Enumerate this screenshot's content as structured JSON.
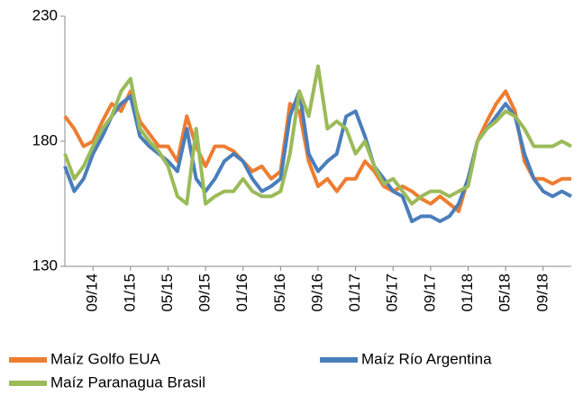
{
  "chart_data": {
    "type": "line",
    "categories": [
      null,
      null,
      null,
      "09/14",
      null,
      null,
      null,
      "01/15",
      null,
      null,
      null,
      "05/15",
      null,
      null,
      null,
      "09/15",
      null,
      null,
      null,
      "01/16",
      null,
      null,
      null,
      "05/16",
      null,
      null,
      null,
      "09/16",
      null,
      null,
      null,
      "01/17",
      null,
      null,
      null,
      "05/17",
      null,
      null,
      null,
      "09/17",
      null,
      null,
      null,
      "01/18",
      null,
      null,
      null,
      "05/18",
      null,
      null,
      null,
      "09/18",
      null,
      null,
      null
    ],
    "series": [
      {
        "name": "Maíz Golfo EUA",
        "color": "#ed7d31",
        "values": [
          190,
          185,
          178,
          180,
          188,
          195,
          192,
          200,
          188,
          183,
          178,
          178,
          172,
          190,
          178,
          170,
          178,
          178,
          176,
          172,
          168,
          170,
          165,
          168,
          195,
          192,
          172,
          162,
          165,
          160,
          165,
          165,
          172,
          168,
          162,
          160,
          162,
          160,
          157,
          155,
          158,
          155,
          152,
          165,
          180,
          188,
          195,
          200,
          192,
          172,
          165,
          165,
          163,
          165,
          165
        ]
      },
      {
        "name": "Maíz Río Argentina",
        "color": "#4a7ebb",
        "values": [
          170,
          160,
          165,
          175,
          182,
          190,
          195,
          198,
          182,
          178,
          175,
          172,
          168,
          185,
          165,
          160,
          165,
          172,
          175,
          172,
          165,
          160,
          162,
          165,
          190,
          200,
          175,
          168,
          172,
          175,
          190,
          192,
          182,
          170,
          165,
          160,
          158,
          148,
          150,
          150,
          148,
          150,
          155,
          165,
          180,
          185,
          190,
          195,
          190,
          175,
          165,
          160,
          158,
          160,
          158
        ]
      },
      {
        "name": "Maíz Paranagua Brasil",
        "color": "#9bbb59",
        "values": [
          175,
          165,
          170,
          178,
          185,
          190,
          200,
          205,
          185,
          180,
          176,
          170,
          158,
          155,
          185,
          155,
          158,
          160,
          160,
          165,
          160,
          158,
          158,
          160,
          175,
          200,
          190,
          210,
          185,
          188,
          185,
          175,
          180,
          170,
          163,
          165,
          160,
          155,
          158,
          160,
          160,
          158,
          160,
          162,
          180,
          185,
          188,
          192,
          190,
          185,
          178,
          178,
          178,
          180,
          178
        ]
      }
    ],
    "ylim": [
      130,
      230
    ],
    "yticks": [
      130,
      180,
      230
    ],
    "grid": false
  }
}
